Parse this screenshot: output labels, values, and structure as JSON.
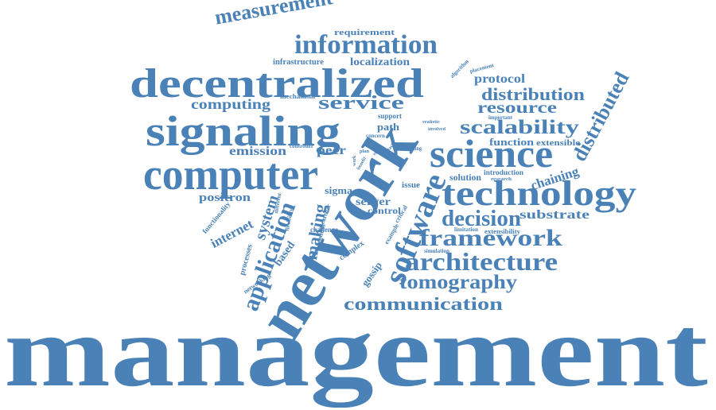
{
  "word_cloud": {
    "color": "#4a82b8",
    "words": [
      {
        "text": "management"
      },
      {
        "text": "network"
      },
      {
        "text": "computer"
      },
      {
        "text": "signaling"
      },
      {
        "text": "decentralized"
      },
      {
        "text": "technology"
      },
      {
        "text": "science"
      },
      {
        "text": "information"
      },
      {
        "text": "measurement"
      },
      {
        "text": "software"
      },
      {
        "text": "application"
      },
      {
        "text": "framework"
      },
      {
        "text": "architecture"
      },
      {
        "text": "decision"
      },
      {
        "text": "tomography"
      },
      {
        "text": "communication"
      },
      {
        "text": "scalability"
      },
      {
        "text": "distribution"
      },
      {
        "text": "resource"
      },
      {
        "text": "distributed"
      },
      {
        "text": "service"
      },
      {
        "text": "computing"
      },
      {
        "text": "emission"
      },
      {
        "text": "positron"
      },
      {
        "text": "making"
      },
      {
        "text": "protocol"
      },
      {
        "text": "localization"
      },
      {
        "text": "requirement"
      },
      {
        "text": "infrastructure"
      },
      {
        "text": "function"
      },
      {
        "text": "extensible"
      },
      {
        "text": "chaining"
      },
      {
        "text": "substrate"
      },
      {
        "text": "internet"
      },
      {
        "text": "system"
      },
      {
        "text": "server"
      },
      {
        "text": "control"
      },
      {
        "text": "peer"
      },
      {
        "text": "path"
      },
      {
        "text": "sigma"
      },
      {
        "text": "based"
      },
      {
        "text": "gossip"
      },
      {
        "text": "support"
      },
      {
        "text": "concern"
      },
      {
        "text": "mechanism"
      },
      {
        "text": "controller"
      },
      {
        "text": "solution"
      },
      {
        "text": "introduction"
      },
      {
        "text": "research"
      },
      {
        "text": "important"
      },
      {
        "text": "realistic"
      },
      {
        "text": "involved"
      },
      {
        "text": "algorithm"
      },
      {
        "text": "placement"
      },
      {
        "text": "building"
      },
      {
        "text": "issue"
      },
      {
        "text": "limitation"
      },
      {
        "text": "extensibility"
      },
      {
        "text": "simulation"
      },
      {
        "text": "networking"
      },
      {
        "text": "functionality"
      },
      {
        "text": "processes"
      },
      {
        "text": "different"
      },
      {
        "text": "flexibility"
      },
      {
        "text": "researcher"
      },
      {
        "text": "challenge"
      },
      {
        "text": "entities"
      },
      {
        "text": "complex"
      },
      {
        "text": "example"
      },
      {
        "text": "critical"
      },
      {
        "text": "plan"
      },
      {
        "text": "effort"
      },
      {
        "text": "work"
      },
      {
        "text": "benefit"
      },
      {
        "text": "core"
      },
      {
        "text": "task"
      },
      {
        "text": "use"
      }
    ]
  }
}
